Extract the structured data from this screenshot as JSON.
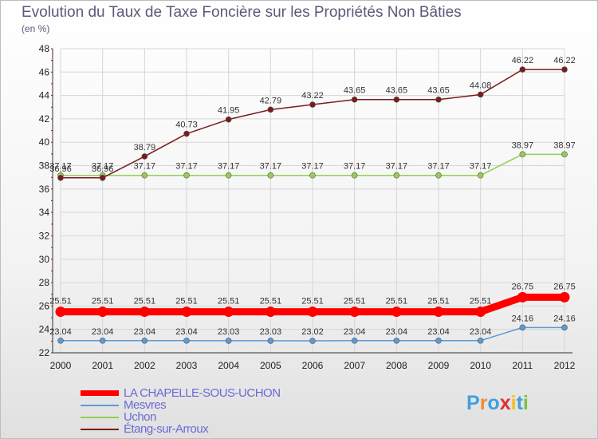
{
  "title": "Evolution du Taux de Taxe Foncière sur les Propriétés Non Bâties",
  "unit": "(en %)",
  "logo": {
    "text": "Proxiti",
    "colors": [
      "#3fa0e0",
      "#f08c28",
      "#3fa0e0",
      "#e03030",
      "#f0c020",
      "#3fa0e0",
      "#7cc040"
    ]
  },
  "chart_data": {
    "type": "line",
    "title": "Evolution du Taux de Taxe Foncière sur les Propriétés Non Bâties",
    "ylabel": "(en %)",
    "xlabel": "",
    "categories": [
      "2000",
      "2001",
      "2002",
      "2003",
      "2004",
      "2005",
      "2006",
      "2007",
      "2008",
      "2009",
      "2010",
      "2011",
      "2012"
    ],
    "ylim": [
      22,
      48
    ],
    "yticks": [
      22,
      24,
      26,
      28,
      30,
      32,
      34,
      36,
      38,
      40,
      42,
      44,
      46,
      48
    ],
    "grid": true,
    "legend": "bottom-left",
    "series": [
      {
        "name": "LA CHAPELLE-SOUS-UCHON",
        "color": "#ff0000",
        "width": "thick",
        "values": [
          25.51,
          25.51,
          25.51,
          25.51,
          25.51,
          25.51,
          25.51,
          25.51,
          25.51,
          25.51,
          25.51,
          26.75,
          26.75
        ],
        "labels": [
          "25.51",
          "25.51",
          "25.51",
          "25.51",
          "25.51",
          "25.51",
          "25.51",
          "25.51",
          "25.51",
          "25.51",
          "25.51",
          "26.75",
          "26.75"
        ]
      },
      {
        "name": "Mesvres",
        "color": "#5b9bd5",
        "width": "thin",
        "values": [
          23.04,
          23.04,
          23.04,
          23.04,
          23.03,
          23.03,
          23.02,
          23.04,
          23.04,
          23.04,
          23.04,
          24.16,
          24.16
        ],
        "labels": [
          "23.04",
          "23.04",
          "23.04",
          "23.04",
          "23.03",
          "23.03",
          "23.02",
          "23.04",
          "23.04",
          "23.04",
          "23.04",
          "24.16",
          "24.16"
        ]
      },
      {
        "name": "Uchon",
        "color": "#92d050",
        "width": "thin",
        "values": [
          37.17,
          37.17,
          37.17,
          37.17,
          37.17,
          37.17,
          37.17,
          37.17,
          37.17,
          37.17,
          37.17,
          38.97,
          38.97
        ],
        "labels": [
          "37.17",
          "37.17",
          "37.17",
          "37.17",
          "37.17",
          "37.17",
          "37.17",
          "37.17",
          "37.17",
          "37.17",
          "37.17",
          "38.97",
          "38.97"
        ]
      },
      {
        "name": "Étang-sur-Arroux",
        "color": "#7a1c1c",
        "width": "thin",
        "values": [
          36.96,
          36.96,
          38.79,
          40.73,
          41.95,
          42.79,
          43.22,
          43.65,
          43.65,
          43.65,
          44.08,
          46.22,
          46.22
        ],
        "labels": [
          "36.96",
          "36.96",
          "38.79",
          "40.73",
          "41.95",
          "42.79",
          "43.22",
          "43.65",
          "43.65",
          "43.65",
          "44.08",
          "46.22",
          "46.22"
        ]
      }
    ]
  }
}
